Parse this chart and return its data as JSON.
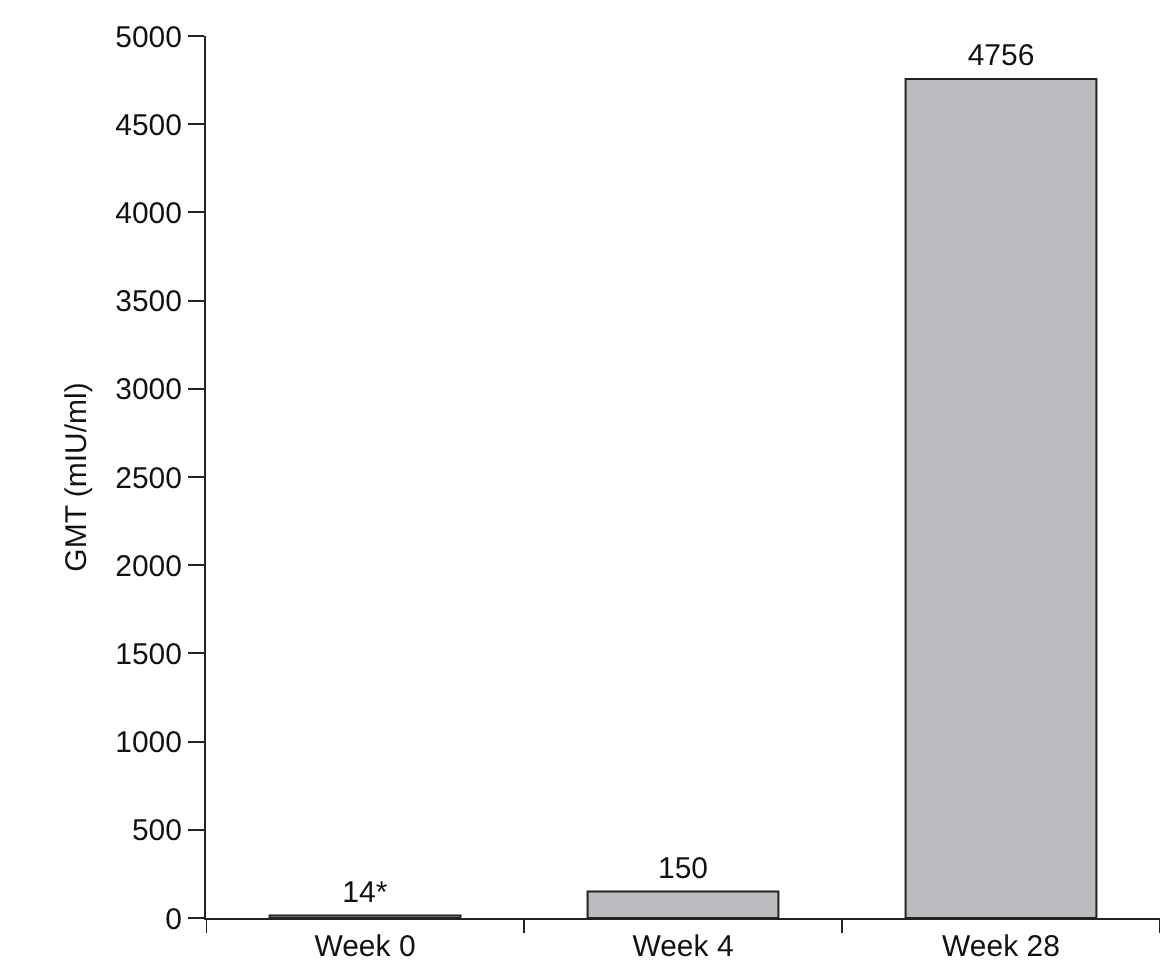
{
  "chart_data": {
    "type": "bar",
    "ylabel": "GMT (mIU/ml)",
    "categories": [
      "Week 0",
      "Week 4",
      "Week 28"
    ],
    "values": [
      14,
      150,
      4756
    ],
    "value_labels": [
      "14*",
      "150",
      "4756"
    ],
    "color": "#bbbcc0",
    "ylim": [
      0,
      5000
    ],
    "yticks": [
      0,
      500,
      1000,
      1500,
      2000,
      2500,
      3000,
      3500,
      4000,
      4500,
      5000
    ],
    "grid": false,
    "legend": false
  }
}
